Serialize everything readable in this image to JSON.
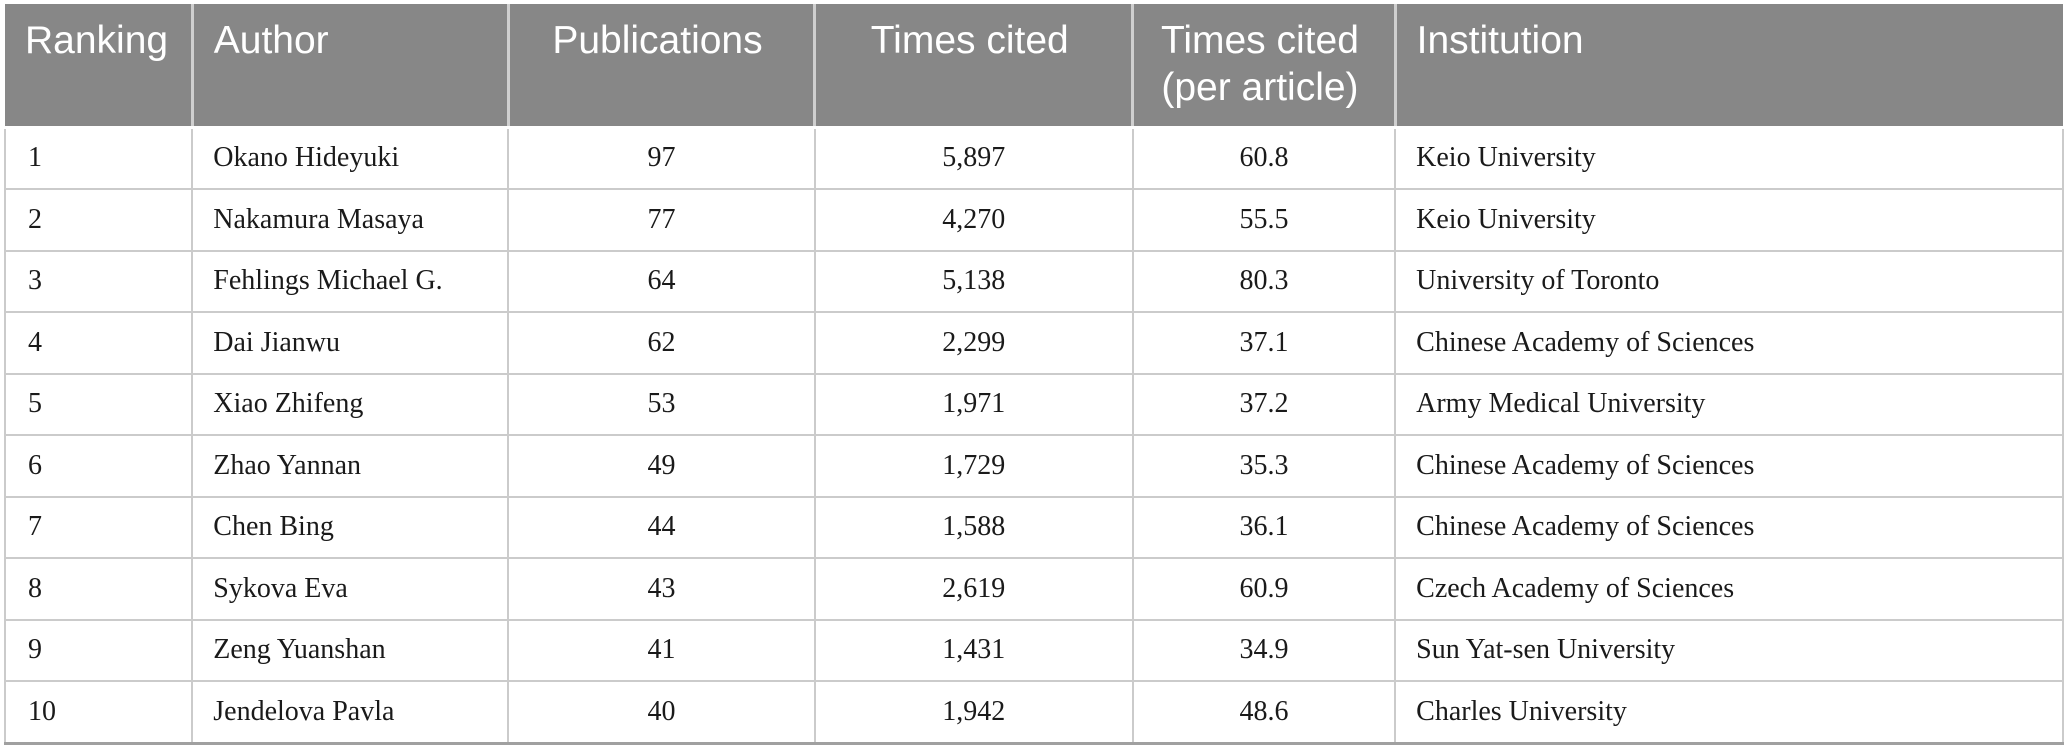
{
  "table": {
    "columns": [
      {
        "key": "ranking",
        "label": "Ranking"
      },
      {
        "key": "author",
        "label": "Author"
      },
      {
        "key": "publications",
        "label": "Publications"
      },
      {
        "key": "times_cited",
        "label": "Times cited"
      },
      {
        "key": "times_cited_per_article",
        "label": "Times cited\n(per article)"
      },
      {
        "key": "institution",
        "label": "Institution"
      }
    ],
    "rows": [
      [
        "1",
        "Okano Hideyuki",
        "97",
        "5,897",
        "60.8",
        "Keio University"
      ],
      [
        "2",
        "Nakamura Masaya",
        "77",
        "4,270",
        "55.5",
        "Keio University"
      ],
      [
        "3",
        "Fehlings Michael G.",
        "64",
        "5,138",
        "80.3",
        "University of Toronto"
      ],
      [
        "4",
        "Dai Jianwu",
        "62",
        "2,299",
        "37.1",
        "Chinese Academy of Sciences"
      ],
      [
        "5",
        "Xiao Zhifeng",
        "53",
        "1,971",
        "37.2",
        "Army Medical University"
      ],
      [
        "6",
        "Zhao Yannan",
        "49",
        "1,729",
        "35.3",
        "Chinese Academy of Sciences"
      ],
      [
        "7",
        "Chen Bing",
        "44",
        "1,588",
        "36.1",
        "Chinese Academy of Sciences"
      ],
      [
        "8",
        "Sykova Eva",
        "43",
        "2,619",
        "60.9",
        "Czech Academy of Sciences"
      ],
      [
        "9",
        "Zeng Yuanshan",
        "41",
        "1,431",
        "34.9",
        "Sun Yat-sen University"
      ],
      [
        "10",
        "Jendelova Pavla",
        "40",
        "1,942",
        "48.6",
        "Charles University"
      ]
    ]
  },
  "colors": {
    "header_background": "#878787",
    "header_text": "#ffffff",
    "grid_line": "#cbcbcb",
    "body_text": "#1a1a1a"
  }
}
